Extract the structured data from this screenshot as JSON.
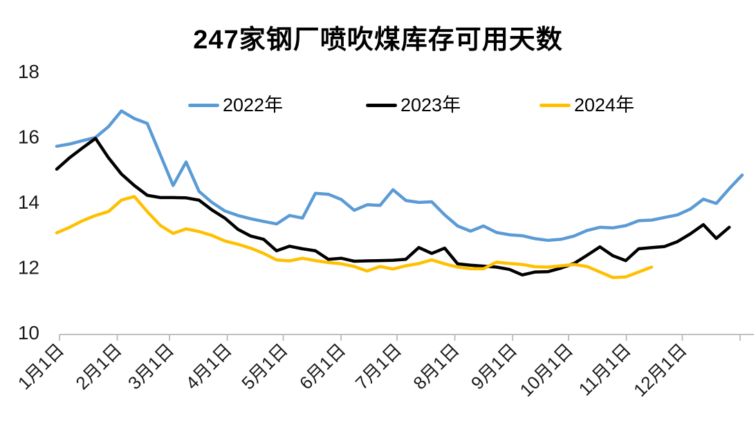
{
  "title": "247家钢厂喷吹煤库存可用天数",
  "legend": [
    {
      "label": "2022年",
      "color": "#5B9BD5"
    },
    {
      "label": "2023年",
      "color": "#000000"
    },
    {
      "label": "2024年",
      "color": "#FFC000"
    }
  ],
  "colors": {
    "axis_line": "#BFBFBF",
    "tick_text": "#1a1a1a",
    "background": "#ffffff"
  },
  "chart_data": {
    "type": "line",
    "title": "247家钢厂喷吹煤库存可用天数",
    "xlabel": "",
    "ylabel": "",
    "ylim": [
      10,
      18
    ],
    "y_ticks": [
      10,
      12,
      14,
      16,
      18
    ],
    "x_tick_labels": [
      "1月1日",
      "2月1日",
      "3月1日",
      "4月1日",
      "5月1日",
      "6月1日",
      "7月1日",
      "8月1日",
      "9月1日",
      "10月1日",
      "11月1日",
      "12月1日"
    ],
    "x_unit": "weekly points, Jan 1 to year end",
    "n_weeks": 54,
    "grid": false,
    "legend_position": "top-inline",
    "series": [
      {
        "name": "2022年",
        "color": "#5B9BD5",
        "values": [
          15.7,
          15.77,
          15.87,
          15.97,
          16.3,
          16.78,
          16.55,
          16.4,
          15.45,
          14.5,
          15.22,
          14.32,
          13.98,
          13.72,
          13.58,
          13.48,
          13.4,
          13.32,
          13.58,
          13.5,
          14.26,
          14.23,
          14.07,
          13.74,
          13.91,
          13.89,
          14.37,
          14.04,
          13.98,
          14.0,
          13.6,
          13.26,
          13.1,
          13.26,
          13.06,
          12.99,
          12.96,
          12.87,
          12.82,
          12.85,
          12.95,
          13.12,
          13.22,
          13.2,
          13.27,
          13.42,
          13.44,
          13.52,
          13.6,
          13.78,
          14.08,
          13.95,
          14.4,
          14.82
        ]
      },
      {
        "name": "2023年",
        "color": "#000000",
        "values": [
          15.0,
          15.35,
          15.65,
          15.94,
          15.35,
          14.85,
          14.5,
          14.2,
          14.13,
          14.13,
          14.12,
          14.05,
          13.75,
          13.5,
          13.16,
          12.95,
          12.85,
          12.5,
          12.64,
          12.56,
          12.5,
          12.24,
          12.27,
          12.18,
          12.19,
          12.2,
          12.21,
          12.24,
          12.6,
          12.42,
          12.58,
          12.1,
          12.06,
          12.03,
          12.0,
          11.93,
          11.76,
          11.85,
          11.86,
          11.97,
          12.11,
          12.36,
          12.62,
          12.35,
          12.2,
          12.56,
          12.6,
          12.63,
          12.78,
          13.02,
          13.3,
          12.88,
          13.22
        ]
      },
      {
        "name": "2024年",
        "color": "#FFC000",
        "values": [
          13.05,
          13.22,
          13.42,
          13.58,
          13.7,
          14.05,
          14.16,
          13.7,
          13.28,
          13.03,
          13.17,
          13.09,
          12.97,
          12.8,
          12.7,
          12.58,
          12.42,
          12.22,
          12.19,
          12.27,
          12.2,
          12.14,
          12.1,
          12.02,
          11.88,
          12.02,
          11.94,
          12.04,
          12.11,
          12.22,
          12.1,
          12.0,
          11.95,
          11.95,
          12.15,
          12.11,
          12.08,
          12.01,
          12.0,
          12.04,
          12.08,
          12.02,
          11.85,
          11.68,
          11.7,
          11.85,
          12.0
        ]
      }
    ]
  }
}
